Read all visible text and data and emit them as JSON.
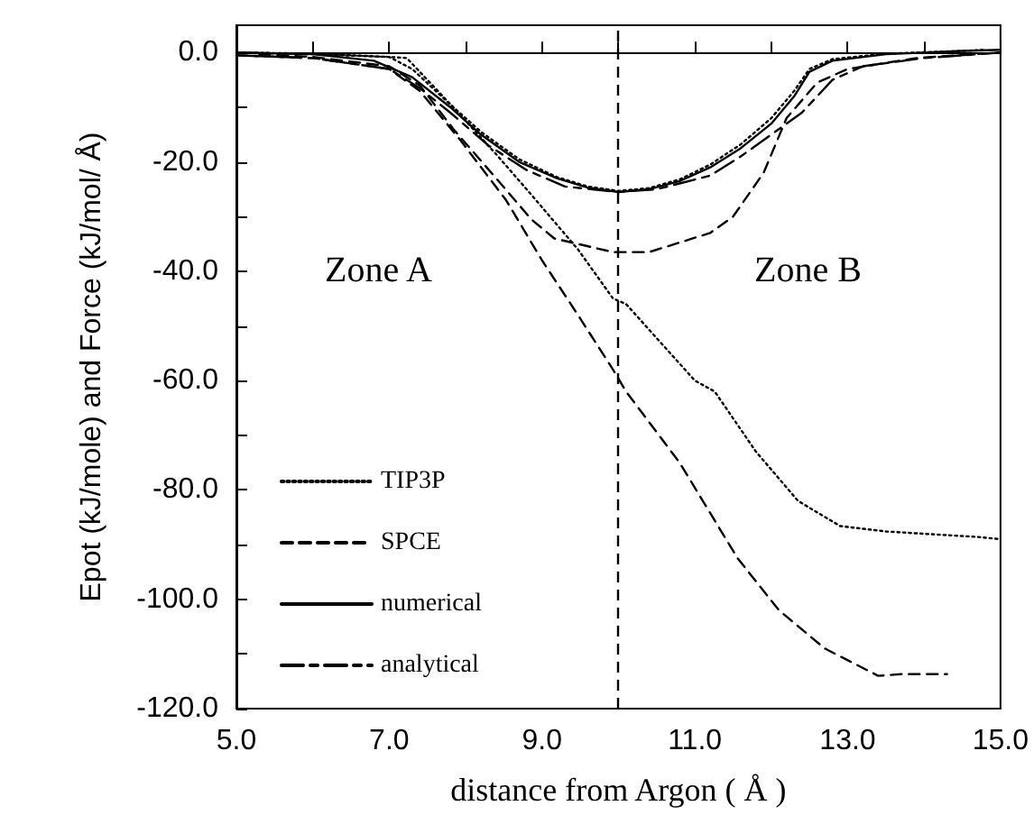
{
  "chart_data": {
    "type": "line",
    "xlabel": "distance from Argon ( Å )",
    "ylabel": "Epot (kJ/mole) and Force (kJ/mol/ Å)",
    "xlim": [
      5,
      15
    ],
    "xticks": [
      {
        "value": 5,
        "label": "5.0"
      },
      {
        "value": 6,
        "label": null
      },
      {
        "value": 7,
        "label": "7.0"
      },
      {
        "value": 8,
        "label": null
      },
      {
        "value": 9,
        "label": "9.0"
      },
      {
        "value": 10,
        "label": null
      },
      {
        "value": 11,
        "label": "11.0"
      },
      {
        "value": 12,
        "label": null
      },
      {
        "value": 13,
        "label": "13.0"
      },
      {
        "value": 14,
        "label": null
      },
      {
        "value": 15,
        "label": "15.0"
      }
    ],
    "ylim": [
      -120,
      5
    ],
    "yticks": [
      {
        "value": -120,
        "label": "-120.0"
      },
      {
        "value": -110,
        "label": null
      },
      {
        "value": -100,
        "label": "-100.0"
      },
      {
        "value": -90,
        "label": null
      },
      {
        "value": -80,
        "label": "-80.0"
      },
      {
        "value": -70,
        "label": null
      },
      {
        "value": -60,
        "label": "-60.0"
      },
      {
        "value": -50,
        "label": null
      },
      {
        "value": -40,
        "label": "-40.0"
      },
      {
        "value": -30,
        "label": null
      },
      {
        "value": -20,
        "label": "-20.0"
      },
      {
        "value": -10,
        "label": null
      },
      {
        "value": 0,
        "label": "0.0"
      }
    ],
    "grid": false,
    "legend": "left",
    "marker": "none",
    "series": [
      {
        "name": "TIP3P",
        "color": "#000000",
        "line_style": "dotted",
        "x": [
          5,
          6,
          7,
          7.23,
          7.77,
          8.4,
          8.86,
          9.47,
          9.93,
          10.1,
          11.0,
          11.26,
          11.8,
          12.35,
          12.9,
          13.5,
          14.7,
          15
        ],
        "values": [
          0,
          -0.3,
          -0.8,
          -1,
          -9,
          -18.6,
          -26,
          -36,
          -45,
          -46,
          -60,
          -62,
          -73,
          -82,
          -86.6,
          -87.6,
          -88.6,
          -89
        ]
      },
      {
        "color": "#000000",
        "line_style": "dotted",
        "x": [
          5.1,
          6,
          7,
          7.3,
          7.8,
          8.2,
          8.7,
          9.2,
          9.6,
          10,
          10.4,
          10.8,
          11.2,
          11.6,
          12.0,
          12.3,
          12.5,
          12.8,
          13.5,
          14.5,
          14.8
        ],
        "values": [
          0,
          -0.2,
          -0.8,
          -3,
          -9.5,
          -14.5,
          -19.5,
          -22.8,
          -24.5,
          -25.3,
          -24.8,
          -23.2,
          -20.5,
          -16.8,
          -12,
          -7,
          -3,
          -1.2,
          -0.2,
          0.3,
          0.5
        ]
      },
      {
        "name": "SPCE",
        "color": "#000000",
        "line_style": "dashed",
        "x": [
          5,
          6,
          7,
          7.4,
          7.93,
          8.53,
          9.0,
          9.47,
          9.93,
          10.1,
          10.8,
          11.56,
          12.1,
          12.7,
          13.4,
          13.7,
          14.3
        ],
        "values": [
          -0.5,
          -1,
          -3,
          -7,
          -16,
          -27,
          -38,
          -48,
          -58,
          -62,
          -75,
          -92.5,
          -102,
          -109,
          -114,
          -113.7,
          -113.7
        ]
      },
      {
        "color": "#000000",
        "line_style": "dashed",
        "x": [
          5.3,
          6,
          7,
          7.4,
          7.84,
          8.4,
          8.86,
          9.16,
          9.93,
          10.4,
          11.2,
          11.5,
          11.9,
          12.2,
          12.6,
          13.0,
          13.9,
          15
        ],
        "values": [
          -0.3,
          -0.8,
          -2.5,
          -6,
          -14,
          -23,
          -30.5,
          -34,
          -36.5,
          -36.5,
          -33,
          -30,
          -22,
          -12,
          -5.5,
          -3,
          -1,
          0
        ]
      },
      {
        "name": "numerical",
        "color": "#000000",
        "line_style": "solid",
        "x": [
          5,
          6,
          6.8,
          7.3,
          7.8,
          8.2,
          8.7,
          9.2,
          9.6,
          10,
          10.4,
          10.8,
          11.2,
          11.6,
          12.0,
          12.3,
          12.5,
          12.8,
          13.5,
          14.5,
          15
        ],
        "values": [
          0,
          -0.3,
          -1.5,
          -4.5,
          -10,
          -15,
          -20,
          -23,
          -24.7,
          -25.5,
          -25,
          -23.5,
          -21,
          -17.5,
          -13,
          -8,
          -3.5,
          -1.5,
          -0.3,
          0.3,
          0.5
        ]
      },
      {
        "name": "analytical",
        "color": "#000000",
        "line_style": "dashdot",
        "x": [
          5,
          6,
          7,
          7.4,
          7.8,
          8.3,
          8.8,
          9.3,
          10,
          10.5,
          11.2,
          11.6,
          12.0,
          12.4,
          12.8,
          13.2,
          14,
          15
        ],
        "values": [
          -0.5,
          -1,
          -3,
          -6.5,
          -11,
          -17,
          -21.5,
          -24.5,
          -25.5,
          -25,
          -22.5,
          -19,
          -15,
          -11,
          -5,
          -2.5,
          -1,
          0
        ]
      }
    ],
    "ref_lines": [
      {
        "axis": "x",
        "value": 10,
        "label": null,
        "line_style": "dashed",
        "color": "#000000"
      }
    ],
    "annotations": [
      "Zone A",
      "Zone B"
    ]
  }
}
